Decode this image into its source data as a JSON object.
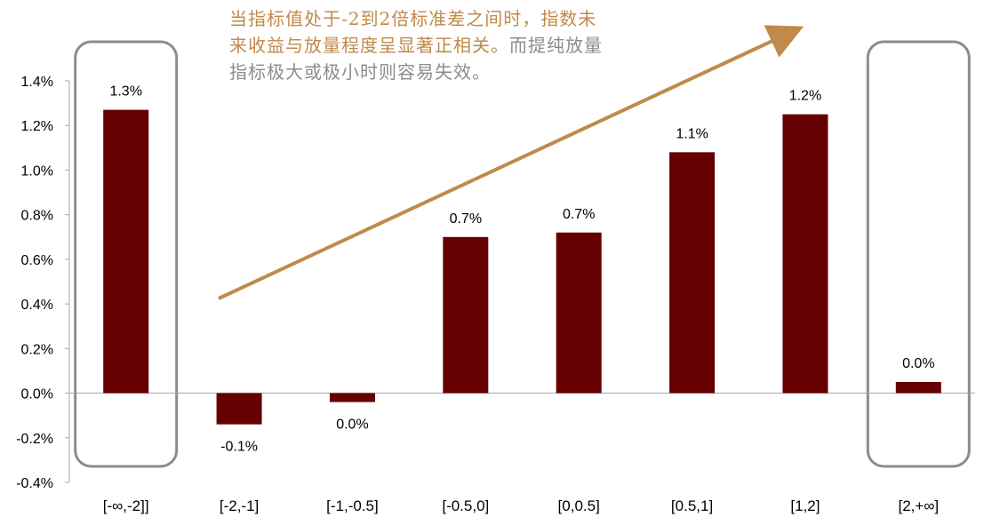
{
  "chart_data": {
    "type": "bar",
    "categories": [
      "[-∞,-2]]",
      "[-2,-1]",
      "[-1,-0.5]",
      "[-0.5,0]",
      "[0,0.5]",
      "[0.5,1]",
      "[1,2]",
      "[2,+∞]"
    ],
    "values": [
      1.27,
      -0.14,
      -0.04,
      0.7,
      0.72,
      1.08,
      1.25,
      0.05
    ],
    "data_labels": [
      "1.3%",
      "-0.1%",
      "0.0%",
      "0.7%",
      "0.7%",
      "1.1%",
      "1.2%",
      "0.0%"
    ],
    "ylim": [
      -0.4,
      1.4
    ],
    "yticks": [
      -0.4,
      -0.2,
      0.0,
      0.2,
      0.4,
      0.6,
      0.8,
      1.0,
      1.2,
      1.4
    ],
    "ytick_labels": [
      "-0.4%",
      "-0.2%",
      "0.0%",
      "0.2%",
      "0.4%",
      "0.6%",
      "0.8%",
      "1.0%",
      "1.2%",
      "1.4%"
    ],
    "title": "",
    "xlabel": "",
    "ylabel": "",
    "grid": false,
    "highlighted_categories": [
      "[-∞,-2]]",
      "[2,+∞]"
    ],
    "colors": {
      "bar": "#660000",
      "arrow": "#bf8a4a",
      "highlight_box": "#8c8c8c",
      "axis": "#a6a6a6"
    }
  },
  "annotation": {
    "line_highlight": "当指标值处于-2到2倍标准差之间时，指数未来收益与放量程度呈显著正相关。",
    "line_note": "而提纯放量指标极大或极小时则容易失效。"
  }
}
